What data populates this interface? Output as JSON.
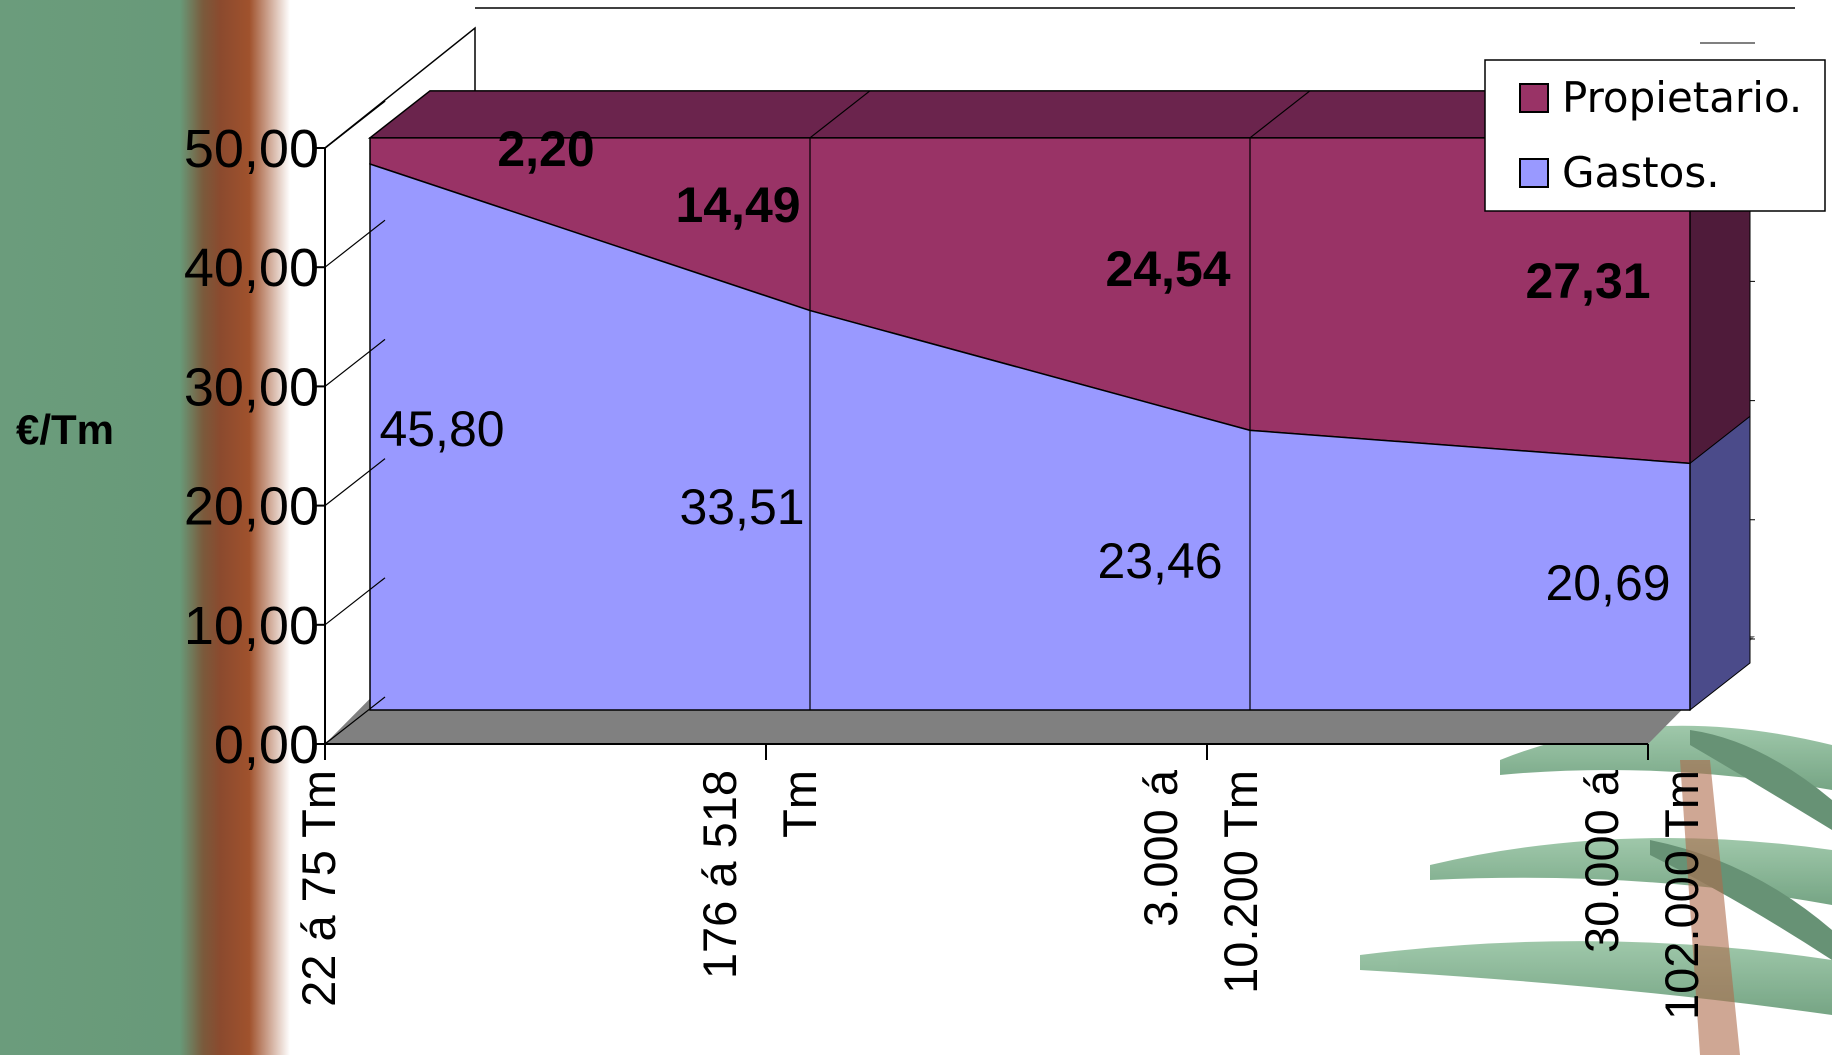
{
  "chart_data": {
    "type": "area",
    "stacked": true,
    "three_d": true,
    "ylabel": "€/Tm",
    "xlabel": "",
    "ylim": [
      0,
      50
    ],
    "y_ticks": [
      "0,00",
      "10,00",
      "20,00",
      "30,00",
      "40,00",
      "50,00"
    ],
    "categories": [
      [
        "22 á 75 Tm"
      ],
      [
        "176 á 518",
        "Tm"
      ],
      [
        "3.000 á",
        "10.200 Tm"
      ],
      [
        "30.000 á",
        "102.000 Tm"
      ]
    ],
    "series": [
      {
        "name": "Gastos.",
        "color": "#9999ff",
        "values": [
          45.8,
          33.51,
          23.46,
          20.69
        ],
        "labels": [
          "45,80",
          "33,51",
          "23,46",
          "20,69"
        ]
      },
      {
        "name": "Propietario.",
        "color": "#993366",
        "values": [
          2.2,
          14.49,
          24.54,
          27.31
        ],
        "labels": [
          "2,20",
          "14,49",
          "24,54",
          "27,31"
        ]
      }
    ],
    "legend_position": "top-right",
    "grid": true
  }
}
